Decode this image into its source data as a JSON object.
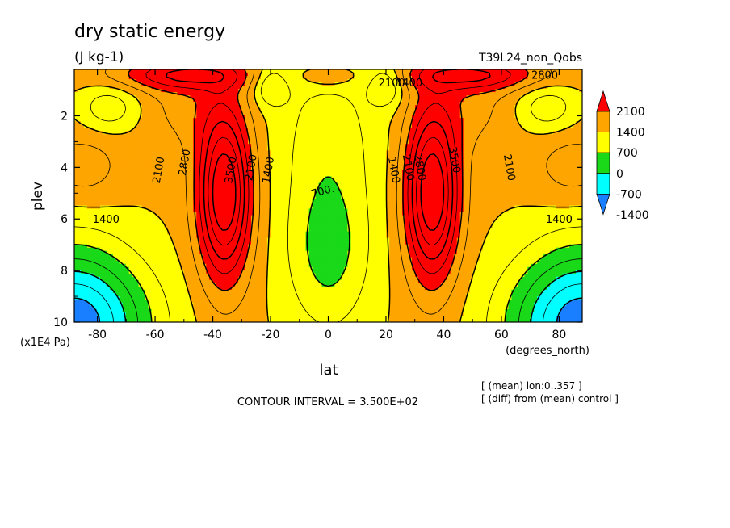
{
  "chart_data": {
    "type": "heatmap",
    "subtype": "filled-contour",
    "title": "dry static energy",
    "units_label": "(J kg-1)",
    "run_label": "T39L24_non_Qobs",
    "xlabel": "lat",
    "x_units": "(degrees_north)",
    "ylabel": "plev",
    "y_units": "(x1E4 Pa)",
    "xlim": [
      -88,
      88
    ],
    "ylim": [
      10,
      0.2
    ],
    "x_ticks": [
      -80,
      -60,
      -40,
      -20,
      0,
      20,
      40,
      60,
      80
    ],
    "x_tick_labels": [
      "-80",
      "-60",
      "-40",
      "-20",
      "0",
      "20",
      "40",
      "60",
      "80"
    ],
    "y_ticks": [
      2,
      4,
      6,
      8,
      10
    ],
    "y_tick_labels": [
      "2",
      "4",
      "6",
      "8",
      "10"
    ],
    "contour_interval_text": "CONTOUR INTERVAL = 3.500E+02",
    "notes": [
      "[ (mean) lon:0..357 ]",
      "[ (diff) from (mean) control ]"
    ],
    "colorbar": {
      "levels": [
        -1400,
        -700,
        0,
        700,
        1400,
        2100
      ],
      "labels": [
        "-1400",
        "-700",
        "0",
        "700",
        "1400",
        "2100"
      ],
      "colors": [
        "#1a7fff",
        "#00ffff",
        "#19d919",
        "#ffff00",
        "#ffa500",
        "#ff0000"
      ],
      "extend": "both"
    },
    "contour_labels": [
      {
        "text": "2100",
        "lat": 22,
        "plev": 0.7
      },
      {
        "text": "1400",
        "lat": 28,
        "plev": 0.7
      },
      {
        "text": "2800",
        "lat": 75,
        "plev": 0.4
      },
      {
        "text": "2100",
        "lat": -59,
        "plev": 4.1
      },
      {
        "text": "2800",
        "lat": -50,
        "plev": 3.8
      },
      {
        "text": "3500",
        "lat": -34,
        "plev": 4.1
      },
      {
        "text": "2100",
        "lat": -27,
        "plev": 4.0
      },
      {
        "text": "1400",
        "lat": -21,
        "plev": 4.1
      },
      {
        "text": "700.",
        "lat": -2,
        "plev": 4.9
      },
      {
        "text": "1400",
        "lat": 23,
        "plev": 4.1
      },
      {
        "text": "2100",
        "lat": 28,
        "plev": 4.0
      },
      {
        "text": "2800",
        "lat": 32,
        "plev": 4.0
      },
      {
        "text": "3500",
        "lat": 44,
        "plev": 3.7
      },
      {
        "text": "2100",
        "lat": 63,
        "plev": 4.0
      },
      {
        "text": "1400",
        "lat": -77,
        "plev": 6.0
      },
      {
        "text": "1400",
        "lat": 80,
        "plev": 6.0
      }
    ]
  }
}
